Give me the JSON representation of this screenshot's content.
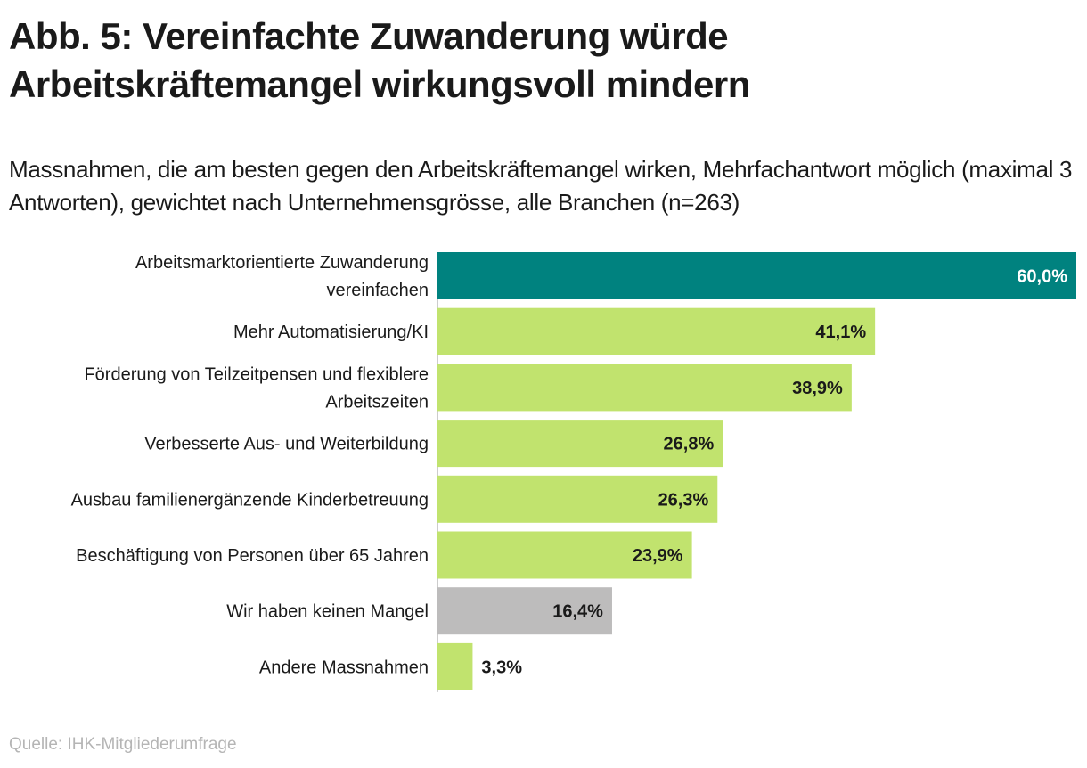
{
  "title": "Abb. 5: Vereinfachte Zuwanderung würde Arbeitskräftemangel wirkungsvoll mindern",
  "subtitle": "Massnahmen, die am besten gegen den Arbeitskräftemangel wirken, Mehrfachantwort möglich (maximal 3 Antworten), gewichtet nach Unternehmensgrösse, alle Branchen (n=263)",
  "source": "Quelle: IHK-Mitgliederumfrage",
  "colors": {
    "highlight": "#00827f",
    "default": "#c1e36e",
    "neutral": "#bdbcbc",
    "label_on_highlight": "#ffffff",
    "label_default": "#1a1a1a",
    "axis": "#999999"
  },
  "chart_data": {
    "type": "bar",
    "orientation": "horizontal",
    "title": "Abb. 5: Vereinfachte Zuwanderung würde Arbeitskräftemangel wirkungsvoll mindern",
    "xlabel": "",
    "ylabel": "",
    "xlim": [
      0,
      60
    ],
    "grid": false,
    "unit": "%",
    "categories": [
      [
        "Arbeitsmarktorientierte Zuwanderung",
        "vereinfachen"
      ],
      [
        "Mehr Automatisierung/KI"
      ],
      [
        "Förderung von Teilzeitpensen und flexiblere",
        "Arbeitszeiten"
      ],
      [
        "Verbesserte Aus- und Weiterbildung"
      ],
      [
        "Ausbau familienergänzende Kinderbetreuung"
      ],
      [
        "Beschäftigung von Personen über 65 Jahren"
      ],
      [
        "Wir haben keinen Mangel"
      ],
      [
        "Andere Massnahmen"
      ]
    ],
    "values": [
      60.0,
      41.1,
      38.9,
      26.8,
      26.3,
      23.9,
      16.4,
      3.3
    ],
    "value_labels": [
      "60,0%",
      "41,1%",
      "38,9%",
      "26,8%",
      "26,3%",
      "23,9%",
      "16,4%",
      "3,3%"
    ],
    "bar_styles": [
      "highlight",
      "default",
      "default",
      "default",
      "default",
      "default",
      "neutral",
      "default"
    ]
  }
}
